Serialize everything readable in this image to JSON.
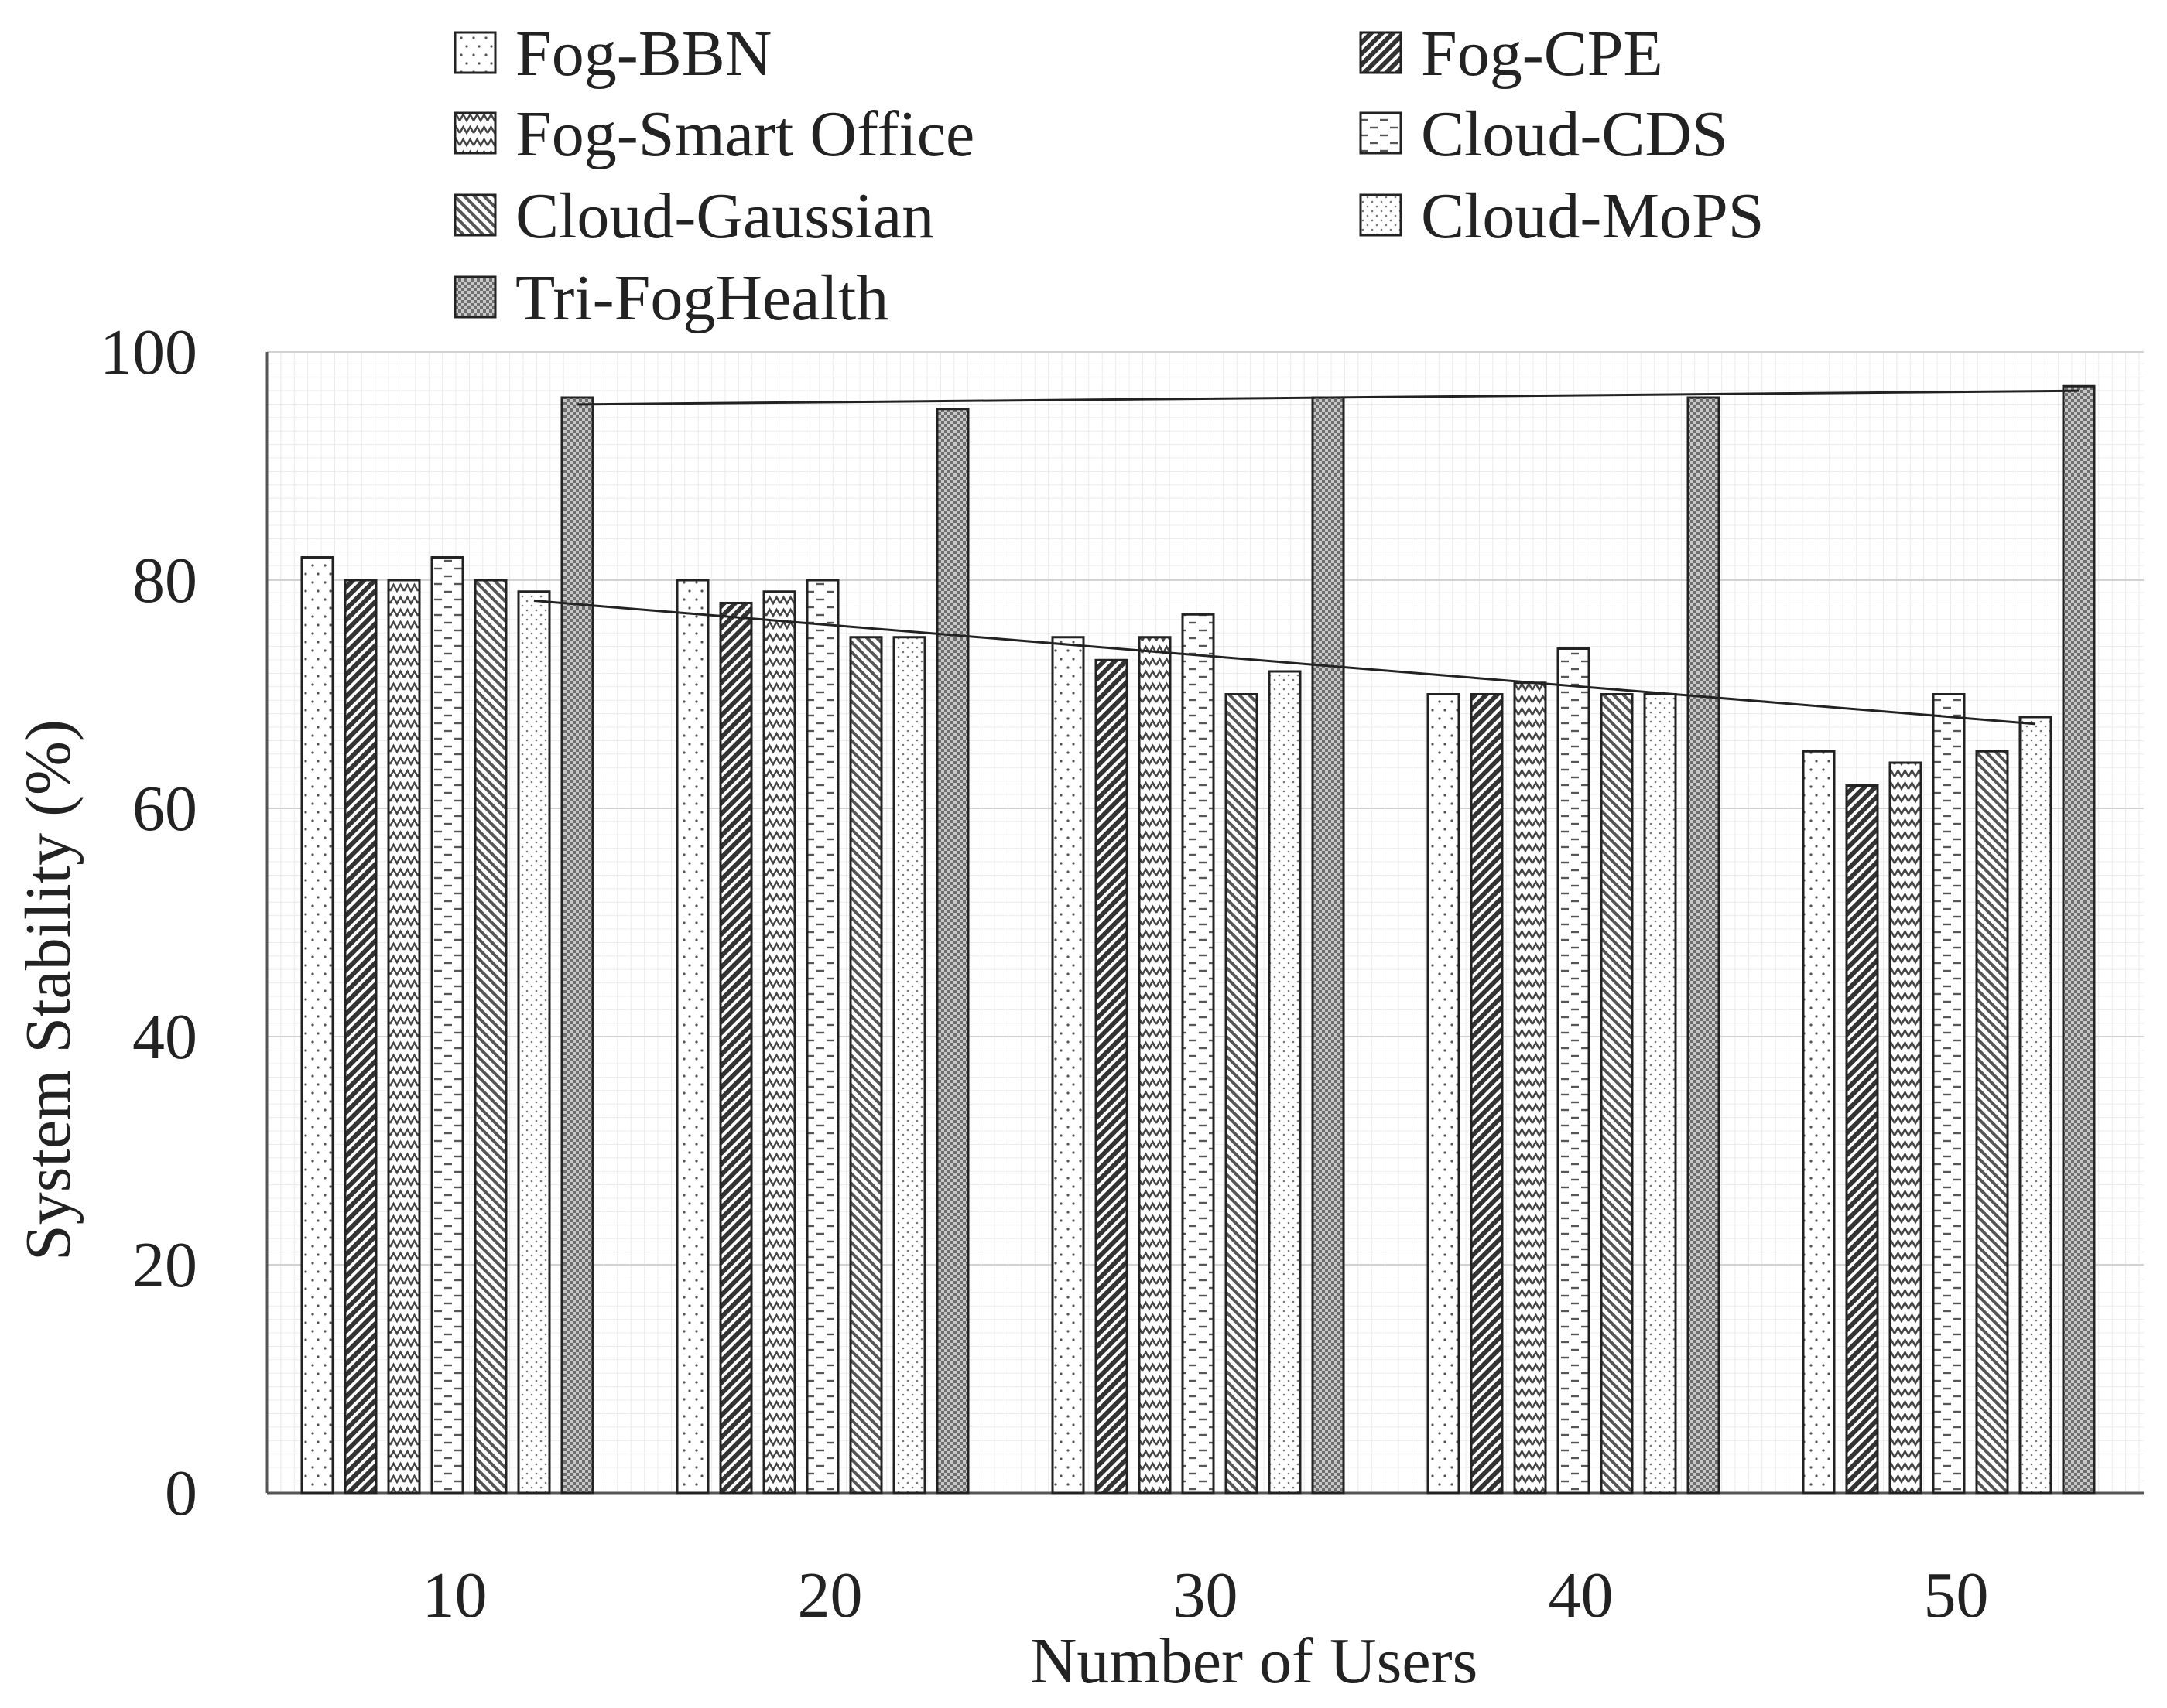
{
  "chart_data": {
    "type": "bar",
    "title": "",
    "xlabel": "Number of Users",
    "ylabel": "System Stability (%)",
    "categories": [
      "10",
      "20",
      "30",
      "40",
      "50"
    ],
    "ylim": [
      0,
      100
    ],
    "yticks": [
      "0",
      "20",
      "40",
      "60",
      "80",
      "100"
    ],
    "grid": true,
    "legend_position": "top",
    "series": [
      {
        "name": "Fog-BBN",
        "values": [
          82,
          80,
          75,
          70,
          65
        ],
        "pattern": "dots-sparse"
      },
      {
        "name": "Fog-CPE",
        "values": [
          80,
          78,
          73,
          70,
          62
        ],
        "pattern": "diag-dense"
      },
      {
        "name": "Fog-Smart Office",
        "values": [
          80,
          79,
          75,
          71,
          64
        ],
        "pattern": "zigzag"
      },
      {
        "name": "Cloud-CDS",
        "values": [
          82,
          80,
          77,
          74,
          70
        ],
        "pattern": "dashes"
      },
      {
        "name": "Cloud-Gaussian",
        "values": [
          80,
          75,
          70,
          70,
          65
        ],
        "pattern": "diag-back"
      },
      {
        "name": "Cloud-MoPS",
        "values": [
          79,
          75,
          72,
          70,
          68
        ],
        "pattern": "dots-fine"
      },
      {
        "name": "Tri-FogHealth",
        "values": [
          96,
          95,
          96,
          96,
          97
        ],
        "pattern": "checker"
      }
    ],
    "trendlines": [
      {
        "name": "Tri-FogHealth trend",
        "series": "Tri-FogHealth"
      },
      {
        "name": "Cloud-MoPS trend",
        "series": "Cloud-MoPS"
      }
    ]
  }
}
